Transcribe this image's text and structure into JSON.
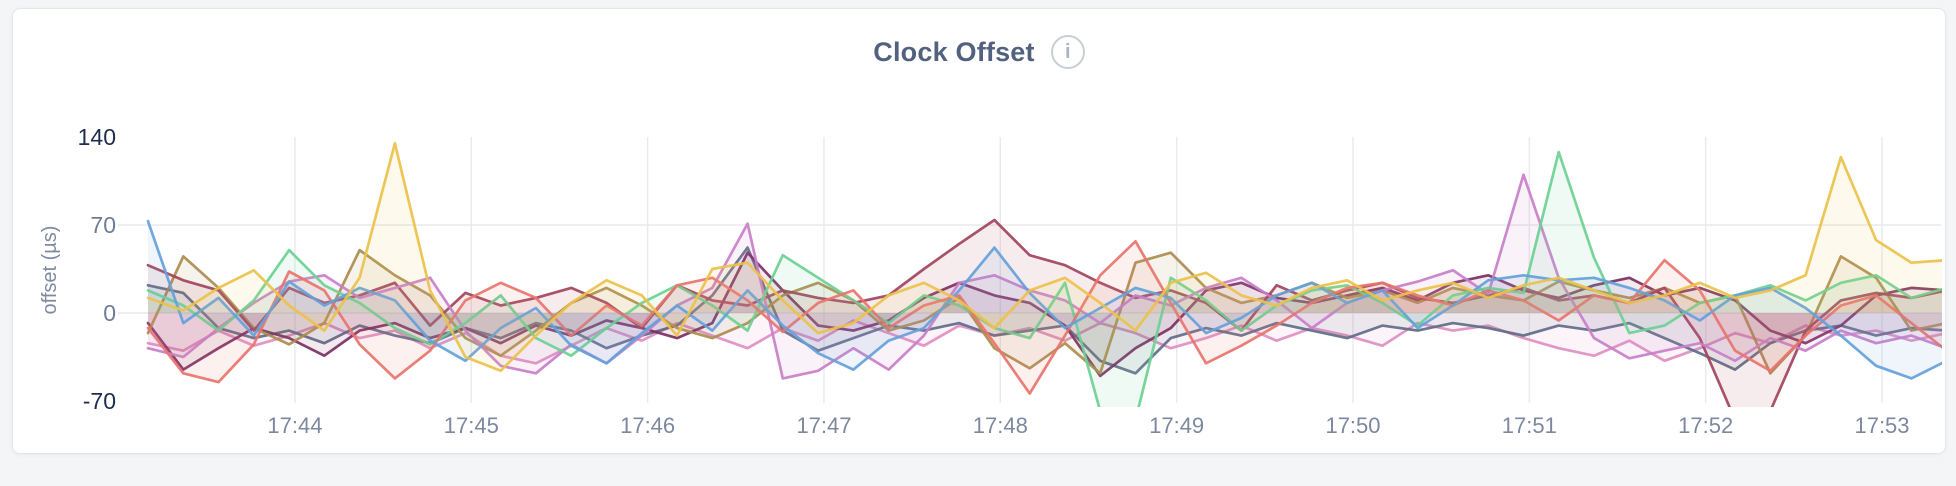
{
  "chart": {
    "title": "Clock Offset"
  },
  "icons": {
    "info_glyph": "i"
  },
  "chart_data": {
    "type": "line",
    "title": "Clock Offset",
    "xlabel": "",
    "ylabel": "offset (µs)",
    "ylim": [
      -70,
      140
    ],
    "grid": true,
    "legend": "none",
    "axis_colors": {
      "strong": "#1e2c4e",
      "normal": "#6f7c96",
      "xlabels": "#7d88a0",
      "grid": "#e8eaec",
      "axis_title": "#7e8aa2"
    },
    "y_ticks": [
      {
        "v": 140,
        "strong": true
      },
      {
        "v": 70,
        "strong": false
      },
      {
        "v": 0,
        "strong": false
      },
      {
        "v": -70,
        "strong": true
      }
    ],
    "y_gridline_values": [
      70,
      0
    ],
    "x_ticks": [
      {
        "label": "17:44",
        "t": 50
      },
      {
        "label": "17:45",
        "t": 110
      },
      {
        "label": "17:46",
        "t": 170
      },
      {
        "label": "17:47",
        "t": 230
      },
      {
        "label": "17:48",
        "t": 290
      },
      {
        "label": "17:49",
        "t": 350
      },
      {
        "label": "17:50",
        "t": 410
      },
      {
        "label": "17:51",
        "t": 470
      },
      {
        "label": "17:52",
        "t": 530
      },
      {
        "label": "17:53",
        "t": 590
      }
    ],
    "x_seconds_per_point": 12,
    "series": [
      {
        "id": "pink",
        "color": "#e08fc1",
        "values": [
          -24,
          -30,
          -14,
          -26,
          -18,
          -8,
          -20,
          -14,
          -28,
          -16,
          -34,
          -40,
          -26,
          -12,
          -22,
          -8,
          -18,
          -28,
          -12,
          -22,
          -6,
          -16,
          -26,
          -10,
          -18,
          -12,
          -22,
          -8,
          -16,
          -28,
          -20,
          -10,
          -22,
          -12,
          -18,
          -26,
          -8,
          -14,
          -10,
          -20,
          -28,
          -34,
          -22,
          -38,
          -28,
          -16,
          -24,
          -10,
          -18,
          -14,
          -22,
          -16
        ]
      },
      {
        "id": "slate",
        "color": "#5e6c87",
        "values": [
          22,
          16,
          -12,
          -20,
          -14,
          -24,
          -10,
          -18,
          -24,
          -12,
          -20,
          -8,
          -14,
          -28,
          -18,
          -10,
          14,
          52,
          -14,
          -30,
          -20,
          -10,
          -14,
          -8,
          -18,
          -14,
          -10,
          -38,
          -48,
          -20,
          -12,
          -18,
          -8,
          -14,
          -20,
          -10,
          -14,
          -8,
          -12,
          -18,
          -10,
          -14,
          -8,
          -20,
          -32,
          -45,
          -24,
          -14,
          -10,
          -18,
          -12,
          -14
        ]
      },
      {
        "id": "plum",
        "color": "#7b2f63",
        "values": [
          -8,
          -45,
          -28,
          -12,
          -20,
          -34,
          -14,
          -8,
          -20,
          -12,
          -24,
          -10,
          -18,
          -6,
          -12,
          -20,
          -8,
          48,
          18,
          -10,
          -14,
          -6,
          12,
          24,
          14,
          8,
          -10,
          -50,
          -28,
          -12,
          18,
          24,
          12,
          8,
          14,
          20,
          10,
          24,
          30,
          18,
          12,
          22,
          28,
          14,
          20,
          10,
          -14,
          -24,
          -10,
          14,
          20,
          18
        ]
      },
      {
        "id": "olive",
        "color": "#ab8c4e",
        "values": [
          -16,
          45,
          20,
          -12,
          -25,
          -8,
          50,
          30,
          14,
          -20,
          -34,
          -14,
          8,
          20,
          6,
          -12,
          -20,
          -8,
          14,
          24,
          10,
          -14,
          -6,
          12,
          -28,
          -44,
          -24,
          -48,
          40,
          48,
          20,
          8,
          14,
          24,
          12,
          18,
          8,
          20,
          14,
          10,
          25,
          18,
          12,
          20,
          8,
          14,
          -48,
          -18,
          45,
          28,
          -14,
          -8
        ]
      },
      {
        "id": "maroon",
        "color": "#a2435c",
        "values": [
          38,
          26,
          18,
          -14,
          20,
          8,
          14,
          24,
          -10,
          16,
          6,
          12,
          20,
          8,
          -12,
          22,
          10,
          6,
          18,
          12,
          8,
          14,
          35,
          55,
          74,
          46,
          38,
          24,
          12,
          18,
          8,
          -14,
          22,
          10,
          18,
          24,
          12,
          8,
          14,
          20,
          10,
          14,
          8,
          20,
          -20,
          -85,
          -78,
          -14,
          10,
          16,
          12,
          18
        ]
      },
      {
        "id": "orchid",
        "color": "#c97fc9",
        "values": [
          -28,
          -35,
          -12,
          8,
          25,
          30,
          12,
          20,
          28,
          -14,
          -42,
          -48,
          -25,
          -40,
          -18,
          6,
          20,
          71,
          -52,
          -46,
          -28,
          -45,
          -18,
          24,
          30,
          18,
          10,
          -8,
          14,
          6,
          20,
          28,
          10,
          -12,
          8,
          18,
          25,
          34,
          15,
          110,
          28,
          -20,
          -36,
          -30,
          -24,
          -38,
          -20,
          -30,
          -14,
          -24,
          -18,
          -28
        ]
      },
      {
        "id": "mint",
        "color": "#6bd192",
        "values": [
          18,
          6,
          -14,
          10,
          50,
          22,
          8,
          -12,
          -25,
          -8,
          14,
          -20,
          -34,
          -12,
          8,
          22,
          6,
          -14,
          46,
          28,
          10,
          -8,
          14,
          6,
          -12,
          -20,
          24,
          -78,
          -85,
          28,
          10,
          -14,
          6,
          18,
          22,
          8,
          -10,
          14,
          20,
          16,
          128,
          44,
          -16,
          -10,
          8,
          14,
          22,
          10,
          24,
          30,
          12,
          20
        ]
      },
      {
        "id": "coral",
        "color": "#e8746c",
        "values": [
          -12,
          -48,
          -55,
          -25,
          33,
          18,
          -25,
          -52,
          -30,
          10,
          24,
          12,
          -18,
          6,
          -10,
          22,
          28,
          10,
          -15,
          8,
          18,
          -12,
          6,
          14,
          -24,
          -64,
          -18,
          30,
          57,
          8,
          -40,
          -26,
          -10,
          8,
          20,
          24,
          14,
          6,
          18,
          10,
          -6,
          14,
          8,
          42,
          18,
          -30,
          -46,
          -18,
          6,
          14,
          -8,
          -30
        ]
      },
      {
        "id": "blue",
        "color": "#64a1da",
        "values": [
          73,
          -8,
          12,
          -18,
          25,
          6,
          20,
          10,
          -22,
          -38,
          -12,
          4,
          -26,
          -40,
          -16,
          6,
          -14,
          18,
          -10,
          -32,
          -45,
          -22,
          -12,
          18,
          52,
          16,
          -12,
          4,
          20,
          12,
          -16,
          -4,
          14,
          24,
          8,
          18,
          -12,
          6,
          26,
          30,
          26,
          28,
          20,
          10,
          -6,
          14,
          20,
          4,
          -18,
          -42,
          -52,
          -38
        ]
      },
      {
        "id": "gold",
        "color": "#ecc14b",
        "values": [
          12,
          2,
          20,
          34,
          6,
          -14,
          28,
          135,
          18,
          -35,
          -46,
          -18,
          8,
          26,
          14,
          -18,
          35,
          40,
          10,
          -16,
          -8,
          14,
          24,
          10,
          -12,
          18,
          28,
          8,
          -14,
          24,
          32,
          14,
          6,
          20,
          26,
          10,
          18,
          24,
          12,
          22,
          28,
          18,
          8,
          14,
          24,
          12,
          18,
          30,
          124,
          58,
          40,
          42
        ]
      }
    ]
  }
}
